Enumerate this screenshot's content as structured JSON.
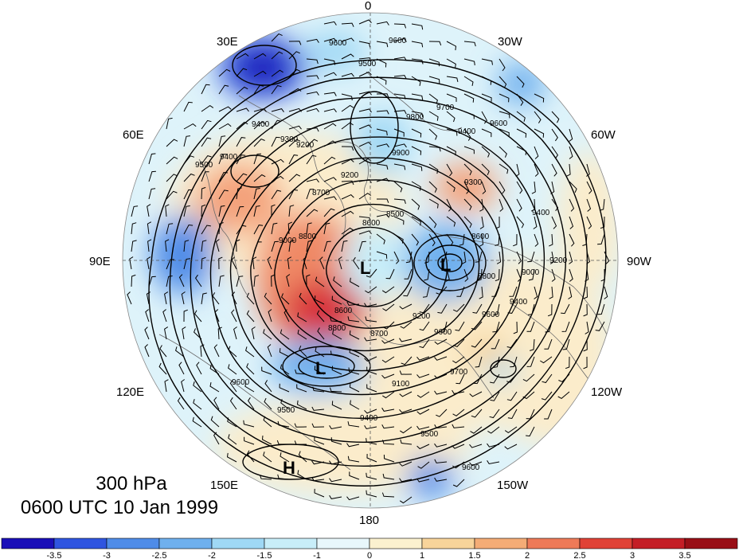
{
  "map": {
    "longitude_labels": {
      "0": "0",
      "30W": "30W",
      "60W": "60W",
      "90W": "90W",
      "120W": "120W",
      "150W": "150W",
      "180": "180",
      "150E": "150E",
      "120E": "120E",
      "90E": "90E",
      "60E": "60E",
      "30E": "30E"
    },
    "centers": [
      {
        "id": "low-north",
        "label": "L"
      },
      {
        "id": "low-east",
        "label": "L"
      },
      {
        "id": "low-south",
        "label": "L"
      },
      {
        "id": "high-south",
        "label": "H"
      }
    ],
    "contour_labels": [
      "9600",
      "9600",
      "9500",
      "9400",
      "9500",
      "9400",
      "9300",
      "9200",
      "9000",
      "8800",
      "8700",
      "8600",
      "8500",
      "8800",
      "8600",
      "9200",
      "9400",
      "9600",
      "9700",
      "9800",
      "9900",
      "9400",
      "9200",
      "9000",
      "8800",
      "8600",
      "9300",
      "9400",
      "9600",
      "8700",
      "9200",
      "9100",
      "9400",
      "9500",
      "9600",
      "9500",
      "9600",
      "9700",
      "9600"
    ],
    "colors": {
      "neg_strong": "#1a12c8",
      "neg": "#4a90e2",
      "neutral": "#e6f6fb",
      "pos": "#f4a07a",
      "pos_strong": "#c82828"
    }
  },
  "caption": {
    "level": "300 hPa",
    "time": "0600 UTC 10 Jan 1999"
  },
  "colorbar": {
    "ticks": [
      "-3.5",
      "-3",
      "-2.5",
      "-2",
      "-1.5",
      "-1",
      "0",
      "1",
      "1.5",
      "2",
      "2.5",
      "3",
      "3.5"
    ],
    "colors": [
      "#1a0fb8",
      "#2f55e0",
      "#4f8ce8",
      "#6fb0ee",
      "#9fd8f5",
      "#c8eef9",
      "#e8f7fb",
      "#fbf1cf",
      "#f8d49a",
      "#f4ac76",
      "#ee7a58",
      "#e04236",
      "#c41e26",
      "#990f16"
    ]
  }
}
